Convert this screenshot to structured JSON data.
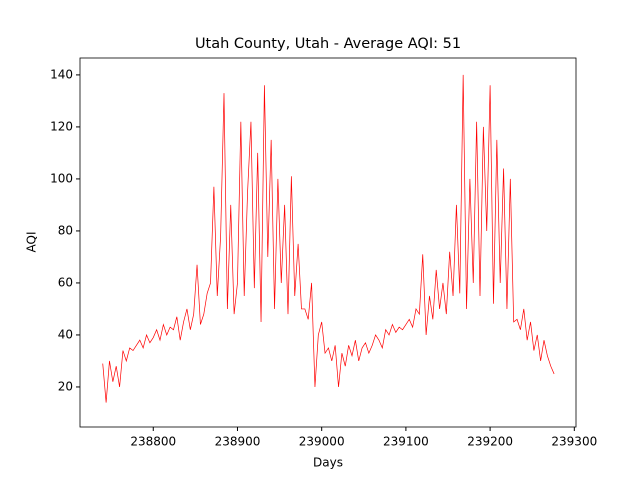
{
  "chart_data": {
    "type": "line",
    "title": "Utah County, Utah - Average AQI: 51",
    "xlabel": "Days",
    "ylabel": "AQI",
    "x": [
      238740,
      238744,
      238748,
      238752,
      238756,
      238760,
      238764,
      238768,
      238772,
      238776,
      238780,
      238784,
      238788,
      238792,
      238796,
      238800,
      238804,
      238808,
      238812,
      238816,
      238820,
      238824,
      238828,
      238832,
      238836,
      238840,
      238844,
      238848,
      238852,
      238856,
      238860,
      238864,
      238868,
      238872,
      238876,
      238880,
      238884,
      238888,
      238892,
      238896,
      238900,
      238904,
      238908,
      238912,
      238916,
      238920,
      238924,
      238928,
      238932,
      238936,
      238940,
      238944,
      238948,
      238952,
      238956,
      238960,
      238964,
      238968,
      238972,
      238976,
      238980,
      238984,
      238988,
      238992,
      238996,
      239000,
      239004,
      239008,
      239012,
      239016,
      239020,
      239024,
      239028,
      239032,
      239036,
      239040,
      239044,
      239048,
      239052,
      239056,
      239060,
      239064,
      239068,
      239072,
      239076,
      239080,
      239084,
      239088,
      239092,
      239096,
      239100,
      239104,
      239108,
      239112,
      239116,
      239120,
      239124,
      239128,
      239132,
      239136,
      239140,
      239144,
      239148,
      239152,
      239156,
      239160,
      239164,
      239168,
      239172,
      239176,
      239180,
      239184,
      239188,
      239192,
      239196,
      239200,
      239204,
      239208,
      239212,
      239216,
      239220,
      239224,
      239228,
      239232,
      239236,
      239240,
      239244,
      239248,
      239252,
      239256,
      239260,
      239264,
      239268,
      239272,
      239276
    ],
    "series": [
      {
        "name": "AQI",
        "color": "#ff0000",
        "values": [
          29,
          14,
          30,
          22,
          28,
          20,
          34,
          30,
          35,
          34,
          36,
          38,
          35,
          40,
          37,
          39,
          42,
          38,
          44,
          40,
          43,
          42,
          47,
          38,
          45,
          50,
          42,
          48,
          67,
          44,
          48,
          56,
          60,
          97,
          55,
          78,
          133,
          50,
          90,
          48,
          60,
          122,
          55,
          95,
          122,
          58,
          110,
          45,
          136,
          70,
          115,
          50,
          100,
          60,
          90,
          48,
          101,
          55,
          75,
          50,
          50,
          46,
          60,
          20,
          40,
          45,
          33,
          35,
          30,
          36,
          20,
          33,
          28,
          36,
          32,
          38,
          30,
          35,
          37,
          33,
          36,
          40,
          38,
          35,
          42,
          40,
          44,
          41,
          43,
          42,
          44,
          46,
          43,
          50,
          48,
          71,
          40,
          55,
          46,
          65,
          50,
          60,
          48,
          72,
          55,
          90,
          56,
          140,
          50,
          100,
          60,
          122,
          55,
          120,
          80,
          136,
          52,
          115,
          60,
          104,
          50,
          100,
          45,
          46,
          42,
          50,
          38,
          45,
          34,
          40,
          30,
          38,
          32,
          28,
          25
        ]
      }
    ],
    "xlim": [
      238713,
      239302
    ],
    "xticks": [
      238800,
      238900,
      239000,
      239100,
      239200,
      239300
    ],
    "ylim": [
      4.6,
      146.5
    ],
    "yticks": [
      20,
      40,
      60,
      80,
      100,
      120,
      140
    ]
  }
}
